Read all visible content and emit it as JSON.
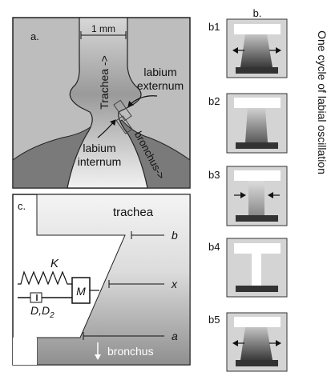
{
  "panel_a": {
    "letter": "a.",
    "scale": "1 mm",
    "trachea": "Trachea ->",
    "labium_externum_line1": "labium",
    "labium_externum_line2": "externum",
    "labium_internum_line1": "labium",
    "labium_internum_line2": "internum",
    "bronchus": "bronchus->"
  },
  "panel_b": {
    "letter": "b.",
    "side_title": "One cycle of labial oscillation",
    "frames": [
      {
        "label": "b1",
        "opening": "wide",
        "arrows": "outward"
      },
      {
        "label": "b2",
        "opening": "medium",
        "arrows": "none"
      },
      {
        "label": "b3",
        "opening": "narrowing",
        "arrows": "inward"
      },
      {
        "label": "b4",
        "opening": "closed",
        "arrows": "none"
      },
      {
        "label": "b5",
        "opening": "wide",
        "arrows": "outward"
      }
    ]
  },
  "panel_c": {
    "letter": "c.",
    "trachea": "trachea",
    "bronchus": "bronchus",
    "marker_b": "b",
    "marker_x": "x",
    "marker_a": "a",
    "spring": "K",
    "mass": "M",
    "damper_main": "D,D",
    "damper_sub": "2"
  }
}
